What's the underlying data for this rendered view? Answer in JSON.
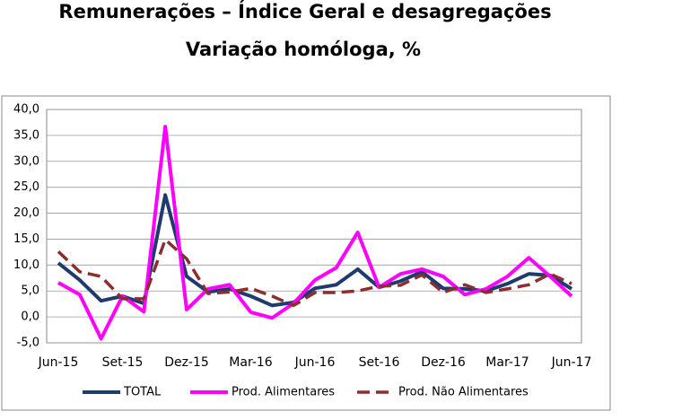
{
  "chart_data": {
    "type": "line",
    "title": "Remunerações – Índice Geral e desagregações",
    "subtitle": "Variação homóloga, %",
    "categories": [
      "Jun-15",
      null,
      null,
      "Set-15",
      null,
      null,
      "Dez-15",
      null,
      null,
      "Mar-16",
      null,
      null,
      "Jun-16",
      null,
      null,
      "Set-16",
      null,
      null,
      "Dez-16",
      null,
      null,
      "Mar-17",
      null,
      null,
      "Jun-17"
    ],
    "series": [
      {
        "name": "TOTAL",
        "color": "#1f3b6e",
        "style": "solid",
        "values": [
          10.4,
          7.1,
          3.1,
          4.0,
          2.6,
          23.5,
          7.8,
          4.8,
          5.4,
          4.0,
          2.2,
          2.8,
          5.5,
          6.2,
          9.2,
          5.7,
          6.9,
          8.7,
          5.5,
          5.4,
          5.0,
          6.4,
          8.3,
          8.0,
          5.4
        ]
      },
      {
        "name": "Prod. Alimentares",
        "color": "#ff00ff",
        "style": "solid",
        "values": [
          6.6,
          4.3,
          -4.2,
          4.0,
          1.0,
          36.7,
          1.4,
          5.4,
          6.2,
          0.9,
          -0.2,
          2.6,
          7.1,
          9.5,
          16.3,
          5.7,
          8.3,
          9.2,
          7.8,
          4.3,
          5.4,
          7.8,
          11.4,
          7.8,
          4.0
        ]
      },
      {
        "name": "Prod. Não Alimentares",
        "color": "#8b2e2e",
        "style": "dashed",
        "values": [
          12.6,
          8.7,
          7.8,
          3.5,
          3.5,
          14.9,
          11.2,
          4.5,
          4.8,
          5.5,
          4.0,
          2.2,
          4.7,
          4.7,
          5.0,
          5.9,
          6.1,
          8.1,
          4.7,
          6.2,
          4.7,
          5.4,
          6.2,
          8.3,
          6.4
        ]
      }
    ],
    "ylim": [
      -5,
      40
    ],
    "yticks": [
      {
        "value": -5,
        "label": "-5,0"
      },
      {
        "value": 0,
        "label": "0,0"
      },
      {
        "value": 5,
        "label": "5,0"
      },
      {
        "value": 10,
        "label": "10,0"
      },
      {
        "value": 15,
        "label": "15,0"
      },
      {
        "value": 20,
        "label": "20,0"
      },
      {
        "value": 25,
        "label": "25,0"
      },
      {
        "value": 30,
        "label": "30,0"
      },
      {
        "value": 35,
        "label": "35,0"
      },
      {
        "value": 40,
        "label": "40,0"
      }
    ],
    "grid": true
  }
}
